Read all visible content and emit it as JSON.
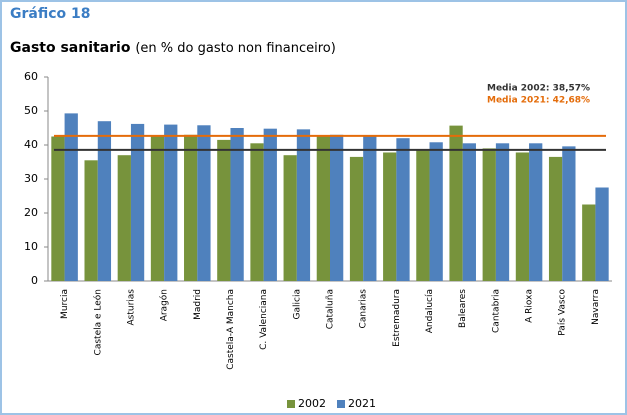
{
  "chart_data": {
    "type": "bar",
    "title": "Gráfico 18",
    "subtitle": "Gasto sanitario",
    "subtitle_note": "(en % do gasto non financeiro)",
    "categories": [
      "Murcia",
      "Castela e León",
      "Asturias",
      "Aragón",
      "Madrid",
      "Castela-A Mancha",
      "C. Valenciana",
      "Galicia",
      "Cataluña",
      "Canarias",
      "Estremadura",
      "Andalucía",
      "Baleares",
      "Cantabria",
      "A Rioxa",
      "País Vasco",
      "Navarra"
    ],
    "series": [
      {
        "name": "2002",
        "color": "#77933c",
        "values": [
          42.5,
          35.5,
          37,
          42.5,
          43,
          41.5,
          40.5,
          37,
          42.5,
          36.5,
          37.8,
          38.5,
          45.7,
          39,
          37.8,
          36.5,
          22.5
        ]
      },
      {
        "name": "2021",
        "color": "#4f81bd",
        "values": [
          49.3,
          47,
          46.2,
          46,
          45.8,
          45,
          44.8,
          44.6,
          43,
          42.8,
          42,
          40.8,
          40.5,
          40.5,
          40.5,
          39.6,
          27.5
        ]
      }
    ],
    "reference_lines": [
      {
        "label": "Media 2002: 38,57%",
        "value": 38.57,
        "color": "#333333"
      },
      {
        "label": "Media 2021: 42,68%",
        "value": 42.68,
        "color": "#e46c0a"
      }
    ],
    "ylim": [
      0,
      60
    ],
    "yticks": [
      0,
      10,
      20,
      30,
      40,
      50,
      60
    ],
    "grid": false,
    "legend": "bottom"
  }
}
